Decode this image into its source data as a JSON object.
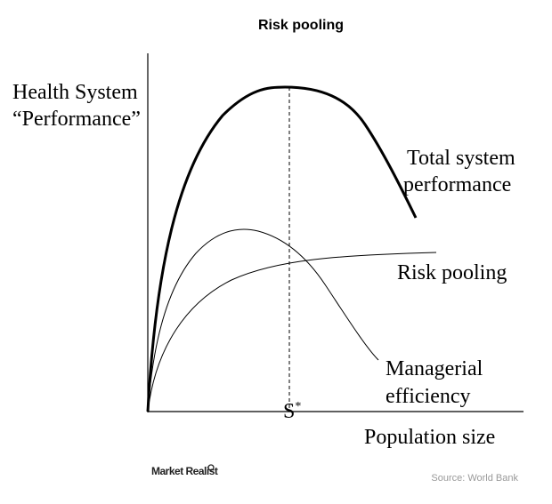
{
  "header": {
    "title": "Risk pooling"
  },
  "axes": {
    "y_label": [
      "Health System",
      "“Performance”"
    ],
    "x_label": "Population size"
  },
  "curves": [
    {
      "label": [
        "Total system",
        "performance"
      ]
    },
    {
      "label": [
        "Risk pooling"
      ]
    },
    {
      "label": [
        "Managerial",
        "efficiency"
      ]
    }
  ],
  "marker": {
    "label": "S",
    "superscript": "*"
  },
  "footer": {
    "logo": "Market Realist",
    "source": "Source: World Bank"
  }
}
